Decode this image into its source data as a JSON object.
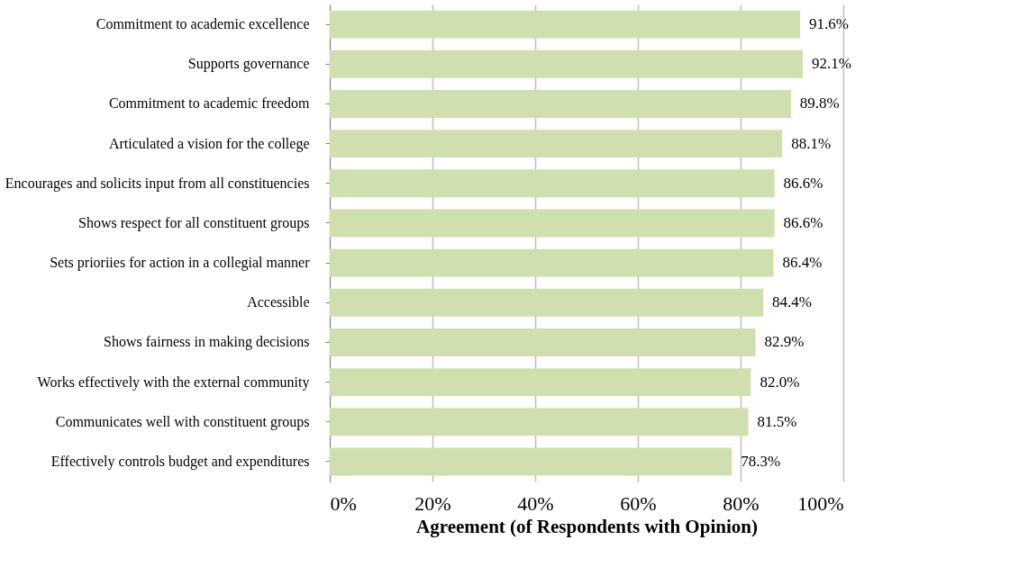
{
  "chart_data": {
    "type": "bar",
    "orientation": "horizontal",
    "xlabel": "Agreement (of Respondents with Opinion)",
    "categories": [
      "Commitment to academic excellence",
      "Supports governance",
      "Commitment to academic freedom",
      "Articulated a vision for the college",
      "Encourages and solicits input from all constituencies",
      "Shows respect for all constituent groups",
      "Sets prioriies for action in a collegial manner",
      "Accessible",
      "Shows fairness in making decisions",
      "Works effectively with the external community",
      "Communicates well with constituent groups",
      "Effectively controls budget and expenditures"
    ],
    "values": [
      91.6,
      92.1,
      89.8,
      88.1,
      86.6,
      86.6,
      86.4,
      84.4,
      82.9,
      82.0,
      81.5,
      78.3
    ],
    "value_labels": [
      "91.6%",
      "92.1%",
      "89.8%",
      "88.1%",
      "86.6%",
      "86.6%",
      "86.4%",
      "84.4%",
      "82.9%",
      "82.0%",
      "81.5%",
      "78.3%"
    ],
    "color": "#d0dfb0",
    "xlim": [
      0,
      100
    ],
    "xticks": [
      {
        "value": 0,
        "label": "0%"
      },
      {
        "value": 20,
        "label": "20%"
      },
      {
        "value": 40,
        "label": "40%"
      },
      {
        "value": 60,
        "label": "60%"
      },
      {
        "value": 80,
        "label": "80%"
      },
      {
        "value": 100,
        "label": "100%"
      }
    ],
    "grid": "x"
  }
}
